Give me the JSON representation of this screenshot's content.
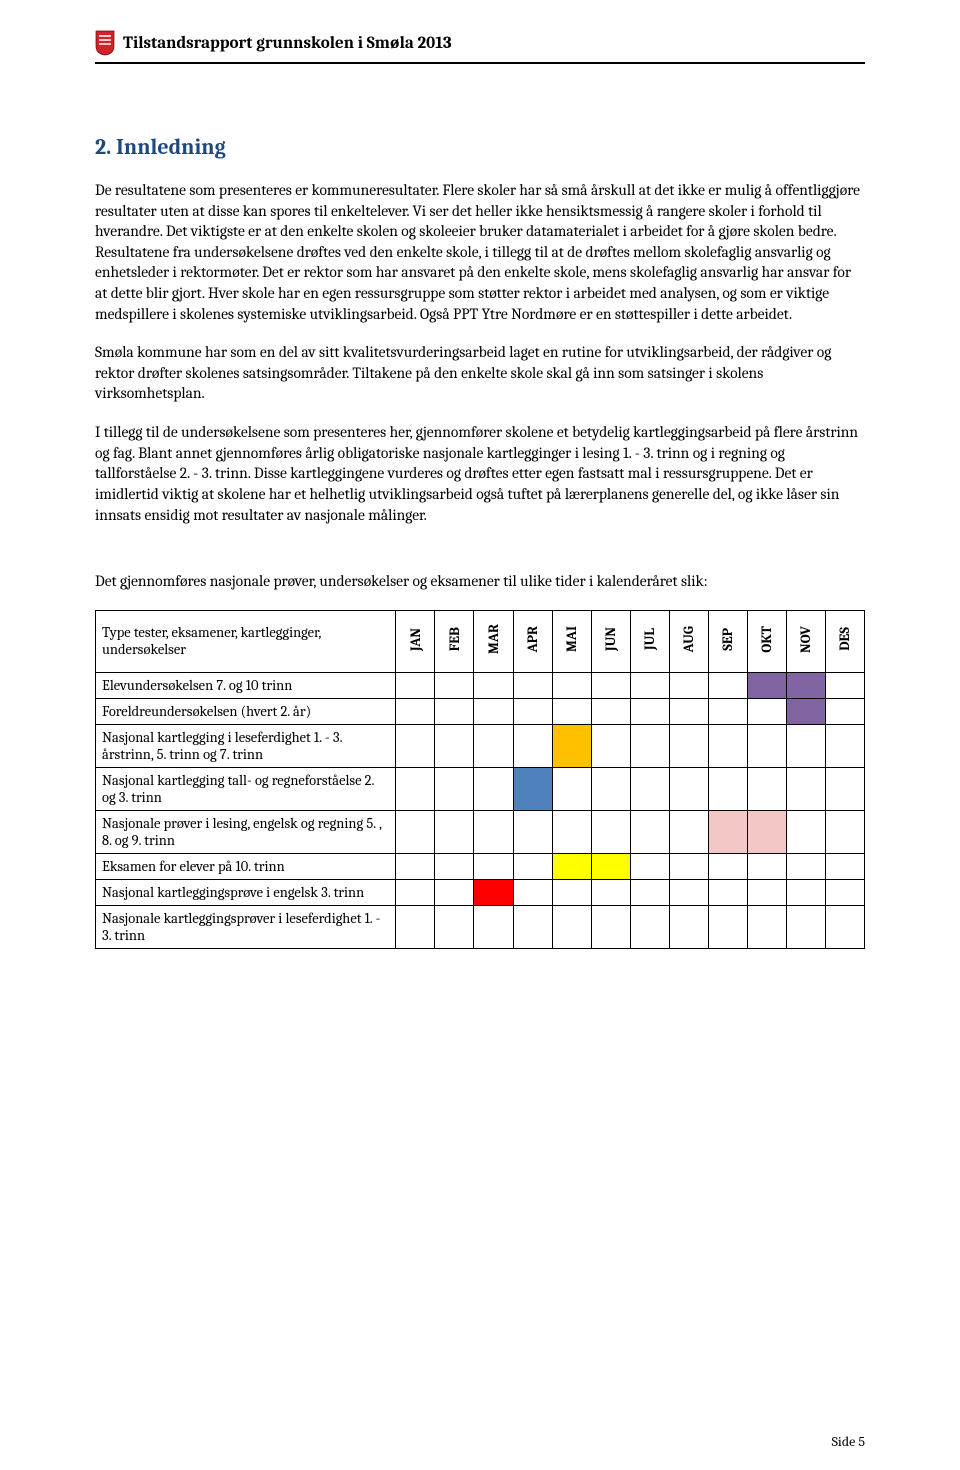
{
  "header": {
    "title": "Tilstandsrapport grunnskolen i Smøla 2013"
  },
  "section": {
    "number_title": "2.  Innledning"
  },
  "paragraphs": {
    "p1": "De resultatene som presenteres er kommuneresultater. Flere skoler har så små årskull at det ikke er mulig å offentliggjøre resultater uten at disse kan spores til enkeltelever. Vi ser det heller ikke hensiktsmessig å rangere skoler i forhold til hverandre. Det viktigste er at den enkelte skolen og skoleeier bruker datamaterialet i arbeidet for å gjøre skolen bedre. Resultatene fra undersøkelsene drøftes ved den enkelte skole, i tillegg til at de drøftes mellom skolefaglig ansvarlig og enhetsleder i rektormøter. Det er rektor som har ansvaret på den enkelte skole, mens skolefaglig ansvarlig har ansvar for at dette blir gjort. Hver skole har en egen ressursgruppe som støtter rektor i arbeidet med analysen, og som er viktige medspillere i skolenes systemiske utviklingsarbeid. Også PPT Ytre Nordmøre er en støttespiller i dette arbeidet.",
    "p2": "Smøla kommune har som en del av sitt kvalitetsvurderingsarbeid laget en rutine for utviklingsarbeid, der rådgiver og rektor drøfter skolenes satsingsområder. Tiltakene på den enkelte skole skal gå inn som satsinger i skolens virksomhetsplan.",
    "p3": "I tillegg til de undersøkelsene som presenteres her, gjennomfører skolene et betydelig kartleggingsarbeid på flere årstrinn og fag. Blant annet gjennomføres årlig obligatoriske nasjonale kartlegginger i lesing 1. - 3. trinn og i regning og tallforståelse 2. - 3. trinn. Disse kartleggingene vurderes og drøftes etter egen fastsatt mal i ressursgruppene. Det er imidlertid viktig at skolene har et helhetlig utviklingsarbeid også tuftet på lærerplanens generelle del, og ikke låser sin innsats ensidig mot resultater av nasjonale målinger.",
    "p4": "Det gjennomføres nasjonale prøver, undersøkelser og eksamener til ulike tider i kalenderåret slik:"
  },
  "table": {
    "header_label": "Type tester, eksamener, kartlegginger, undersøkelser",
    "months": [
      "JAN",
      "FEB",
      "MAR",
      "APR",
      "MAI",
      "JUN",
      "JUL",
      "AUG",
      "SEP",
      "OKT",
      "NOV",
      "DES"
    ],
    "rows": [
      {
        "label": "Elevundersøkelsen 7. og 10 trinn",
        "cells": [
          "",
          "",
          "",
          "",
          "",
          "",
          "",
          "",
          "",
          "#8064a2",
          "#8064a2",
          ""
        ]
      },
      {
        "label": "Foreldreundersøkelsen (hvert 2. år)",
        "cells": [
          "",
          "",
          "",
          "",
          "",
          "",
          "",
          "",
          "",
          "",
          "#8064a2",
          ""
        ]
      },
      {
        "label": "Nasjonal kartlegging i leseferdighet 1. - 3. årstrinn, 5. trinn og 7. trinn",
        "cells": [
          "",
          "",
          "",
          "",
          "#ffc000",
          "",
          "",
          "",
          "",
          "",
          "",
          ""
        ]
      },
      {
        "label": "Nasjonal kartlegging tall- og regneforståelse 2. og 3. trinn",
        "cells": [
          "",
          "",
          "",
          "#4f81bd",
          "",
          "",
          "",
          "",
          "",
          "",
          "",
          ""
        ]
      },
      {
        "label": "Nasjonale prøver i lesing, engelsk og regning 5. , 8. og 9. trinn",
        "cells": [
          "",
          "",
          "",
          "",
          "",
          "",
          "",
          "",
          "#f4c7c7",
          "#f4c7c7",
          "",
          ""
        ]
      },
      {
        "label": "Eksamen for elever på 10. trinn",
        "cells": [
          "",
          "",
          "",
          "",
          "#ffff00",
          "#ffff00",
          "",
          "",
          "",
          "",
          "",
          ""
        ]
      },
      {
        "label": "Nasjonal kartleggingsprøve i engelsk 3. trinn",
        "cells": [
          "",
          "",
          "#ff0000",
          "",
          "",
          "",
          "",
          "",
          "",
          "",
          "",
          ""
        ]
      },
      {
        "label": "Nasjonale kartleggingsprøver i leseferdighet 1. - 3. trinn",
        "cells": [
          "",
          "",
          "",
          "",
          "",
          "",
          "",
          "",
          "",
          "",
          "",
          ""
        ]
      }
    ]
  },
  "colors": {
    "heading": "#1f497d",
    "shield_bg": "#d1232a",
    "shield_line": "#c00000"
  },
  "footer": {
    "text": "Side 5"
  }
}
